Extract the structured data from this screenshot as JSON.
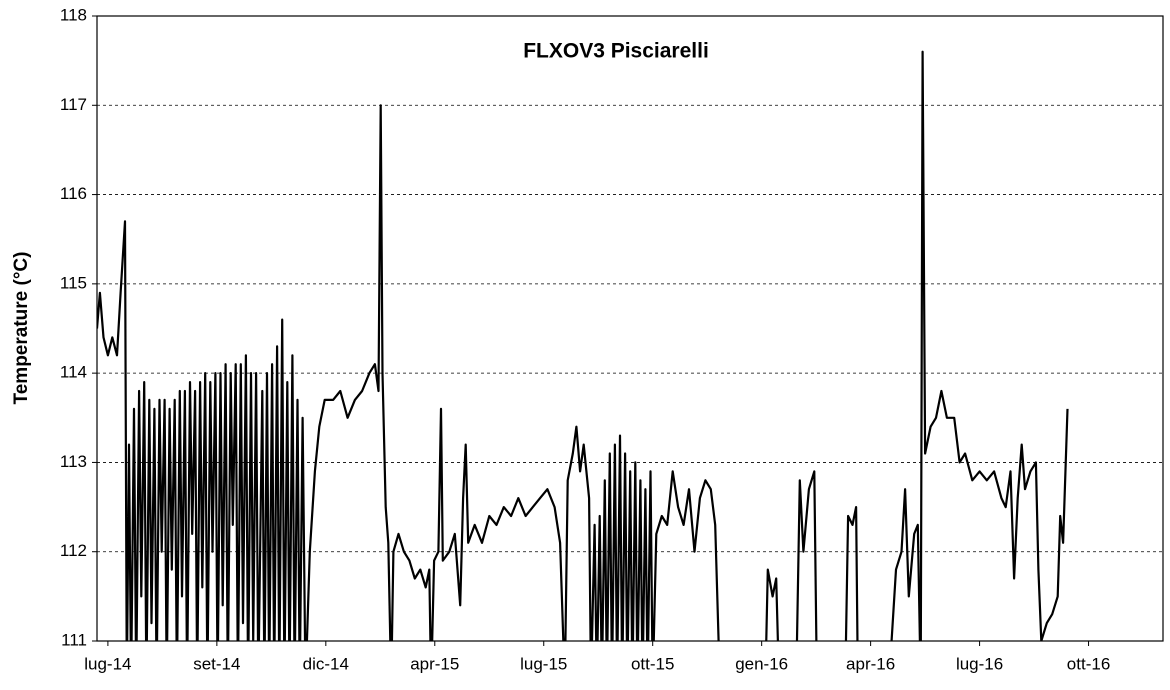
{
  "chart_data": {
    "type": "line",
    "title": "FLXOV3 Pisciarelli",
    "y_label": "Temperature (°C)",
    "color": "#000000",
    "grid": true,
    "ylim": [
      111,
      118
    ],
    "yticks": [
      111,
      112,
      113,
      114,
      115,
      116,
      117,
      118
    ],
    "xlim": [
      -0.3,
      29.05
    ],
    "xticks": [
      {
        "value": 0,
        "label": "lug-14"
      },
      {
        "value": 3,
        "label": "set-14"
      },
      {
        "value": 6,
        "label": "dic-14"
      },
      {
        "value": 9,
        "label": "apr-15"
      },
      {
        "value": 12,
        "label": "lug-15"
      },
      {
        "value": 15,
        "label": "ott-15"
      },
      {
        "value": 18,
        "label": "gen-16"
      },
      {
        "value": 21,
        "label": "apr-16"
      },
      {
        "value": 24,
        "label": "lug-16"
      },
      {
        "value": 27,
        "label": "ott-16"
      }
    ],
    "x": [
      -0.3,
      -0.22,
      -0.12,
      0.0,
      0.12,
      0.25,
      0.35,
      0.47,
      0.52,
      0.58,
      0.64,
      0.72,
      0.78,
      0.86,
      0.92,
      1.0,
      1.06,
      1.14,
      1.2,
      1.28,
      1.34,
      1.42,
      1.48,
      1.56,
      1.62,
      1.7,
      1.76,
      1.84,
      1.9,
      1.98,
      2.04,
      2.12,
      2.18,
      2.26,
      2.32,
      2.4,
      2.46,
      2.54,
      2.6,
      2.68,
      2.74,
      2.82,
      2.88,
      2.96,
      3.02,
      3.1,
      3.16,
      3.24,
      3.3,
      3.38,
      3.44,
      3.52,
      3.58,
      3.66,
      3.72,
      3.8,
      3.86,
      3.94,
      4.0,
      4.08,
      4.14,
      4.25,
      4.31,
      4.38,
      4.44,
      4.52,
      4.58,
      4.66,
      4.72,
      4.8,
      4.86,
      4.94,
      5.0,
      5.08,
      5.14,
      5.22,
      5.28,
      5.36,
      5.44,
      5.56,
      5.7,
      5.82,
      5.97,
      6.2,
      6.4,
      6.6,
      6.8,
      7.0,
      7.2,
      7.35,
      7.45,
      7.51,
      7.56,
      7.65,
      7.72,
      7.8,
      7.86,
      8.0,
      8.15,
      8.3,
      8.45,
      8.6,
      8.75,
      8.85,
      8.9,
      8.98,
      9.1,
      9.17,
      9.22,
      9.4,
      9.55,
      9.7,
      9.78,
      9.85,
      9.92,
      10.1,
      10.3,
      10.5,
      10.7,
      10.9,
      11.1,
      11.3,
      11.5,
      11.7,
      11.9,
      12.1,
      12.3,
      12.45,
      12.58,
      12.66,
      12.8,
      12.9,
      13.0,
      13.1,
      13.25,
      13.3,
      13.4,
      13.46,
      13.54,
      13.6,
      13.68,
      13.74,
      13.82,
      13.88,
      13.96,
      14.02,
      14.1,
      14.16,
      14.24,
      14.3,
      14.38,
      14.44,
      14.52,
      14.58,
      14.66,
      14.72,
      14.8,
      14.86,
      14.94,
      15.0,
      15.1,
      15.25,
      15.4,
      15.55,
      15.7,
      15.85,
      16.0,
      16.15,
      16.3,
      16.45,
      16.6,
      16.72,
      16.85,
      17.5,
      18.1,
      18.17,
      18.3,
      18.4,
      18.48,
      18.8,
      18.95,
      19.05,
      19.15,
      19.3,
      19.45,
      19.52,
      20.0,
      20.3,
      20.38,
      20.5,
      20.6,
      20.65,
      21.1,
      21.5,
      21.7,
      21.85,
      21.95,
      22.05,
      22.2,
      22.3,
      22.38,
      22.43,
      22.5,
      22.65,
      22.8,
      22.95,
      23.1,
      23.3,
      23.45,
      23.6,
      23.8,
      24.0,
      24.2,
      24.4,
      24.6,
      24.72,
      24.85,
      24.95,
      25.05,
      25.16,
      25.25,
      25.4,
      25.55,
      25.62,
      25.7,
      25.85,
      26.0,
      26.15,
      26.22,
      26.3,
      26.42
    ],
    "values": [
      114.5,
      114.9,
      114.4,
      114.2,
      114.4,
      114.2,
      114.9,
      115.7,
      110.5,
      113.2,
      110.5,
      113.6,
      110.5,
      113.8,
      111.5,
      113.9,
      110.5,
      113.7,
      111.2,
      113.6,
      110.5,
      113.7,
      112.0,
      113.7,
      110.5,
      113.6,
      111.8,
      113.7,
      110.5,
      113.8,
      111.5,
      113.8,
      110.5,
      113.9,
      112.2,
      113.8,
      110.5,
      113.9,
      111.6,
      114.0,
      110.5,
      113.9,
      112.0,
      114.0,
      110.5,
      114.0,
      111.4,
      114.1,
      110.5,
      114.0,
      112.3,
      114.1,
      110.5,
      114.1,
      111.2,
      114.2,
      110.5,
      114.0,
      111.0,
      114.0,
      110.5,
      113.8,
      110.5,
      114.0,
      110.5,
      114.1,
      110.5,
      114.3,
      110.5,
      114.6,
      110.5,
      113.9,
      110.5,
      114.2,
      110.5,
      113.7,
      110.5,
      113.5,
      110.5,
      112.0,
      112.9,
      113.4,
      113.7,
      113.7,
      113.8,
      113.5,
      113.7,
      113.8,
      114.0,
      114.1,
      113.8,
      117.0,
      114.0,
      112.5,
      112.1,
      110.5,
      112.0,
      112.2,
      112.0,
      111.9,
      111.7,
      111.8,
      111.6,
      111.8,
      110.5,
      111.9,
      112.0,
      113.6,
      111.9,
      112.0,
      112.2,
      111.4,
      112.6,
      113.2,
      112.1,
      112.3,
      112.1,
      112.4,
      112.3,
      112.5,
      112.4,
      112.6,
      112.4,
      112.5,
      112.6,
      112.7,
      112.5,
      112.1,
      110.5,
      112.8,
      113.1,
      113.4,
      112.9,
      113.2,
      112.6,
      110.5,
      112.3,
      110.5,
      112.4,
      110.5,
      112.8,
      110.5,
      113.1,
      110.5,
      113.2,
      110.5,
      113.3,
      110.5,
      113.1,
      110.5,
      112.9,
      110.5,
      113.0,
      110.5,
      112.8,
      110.5,
      112.7,
      110.5,
      112.9,
      110.5,
      112.2,
      112.4,
      112.3,
      112.9,
      112.5,
      112.3,
      112.7,
      112.0,
      112.6,
      112.8,
      112.7,
      112.3,
      110.5,
      null,
      110.5,
      111.8,
      111.5,
      111.7,
      110.5,
      null,
      110.5,
      112.8,
      112.0,
      112.7,
      112.9,
      110.5,
      null,
      110.5,
      112.4,
      112.3,
      112.5,
      110.5,
      null,
      110.5,
      111.8,
      112.0,
      112.7,
      111.5,
      112.2,
      112.3,
      110.5,
      117.6,
      113.1,
      113.4,
      113.5,
      113.8,
      113.5,
      113.5,
      113.0,
      113.1,
      112.8,
      112.9,
      112.8,
      112.9,
      112.6,
      112.5,
      112.9,
      111.7,
      112.6,
      113.2,
      112.7,
      112.9,
      113.0,
      111.8,
      111.0,
      111.2,
      111.3,
      111.5,
      112.4,
      112.1,
      113.6
    ]
  }
}
